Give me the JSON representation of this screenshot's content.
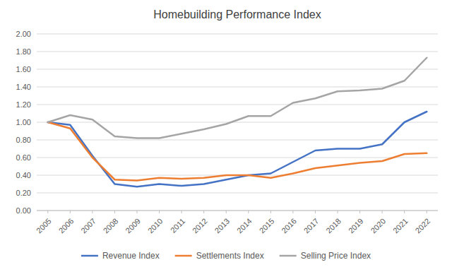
{
  "chart_data": {
    "type": "line",
    "title": "Homebuilding Performance Index",
    "x": [
      2005,
      2006,
      2007,
      2008,
      2009,
      2010,
      2011,
      2012,
      2013,
      2014,
      2015,
      2016,
      2017,
      2018,
      2019,
      2020,
      2021,
      2022
    ],
    "xlim": [
      2004.5,
      2022.5
    ],
    "xticks": [
      2005,
      2006,
      2007,
      2008,
      2009,
      2010,
      2011,
      2012,
      2013,
      2014,
      2015,
      2016,
      2017,
      2018,
      2019,
      2020,
      2021,
      2022
    ],
    "ylim": [
      0,
      2
    ],
    "yticks": [
      {
        "value": 0,
        "label": "0.00"
      },
      {
        "value": 0.2,
        "label": "0.20"
      },
      {
        "value": 0.4,
        "label": "0.40"
      },
      {
        "value": 0.6,
        "label": "0.60"
      },
      {
        "value": 0.8,
        "label": "0.80"
      },
      {
        "value": 1.0,
        "label": "1.00"
      },
      {
        "value": 1.2,
        "label": "1.20"
      },
      {
        "value": 1.4,
        "label": "1.40"
      },
      {
        "value": 1.6,
        "label": "1.60"
      },
      {
        "value": 1.8,
        "label": "1.80"
      },
      {
        "value": 2.0,
        "label": "2.00"
      }
    ],
    "grid": true,
    "legend": "bottom",
    "series": [
      {
        "name": "Revenue Index",
        "color": "#4472C4",
        "values": [
          1.0,
          0.97,
          0.62,
          0.3,
          0.27,
          0.3,
          0.28,
          0.3,
          0.35,
          0.4,
          0.42,
          0.55,
          0.68,
          0.7,
          0.7,
          0.75,
          1.0,
          1.12
        ]
      },
      {
        "name": "Settlements Index",
        "color": "#ED7D31",
        "values": [
          1.0,
          0.93,
          0.6,
          0.35,
          0.34,
          0.37,
          0.36,
          0.37,
          0.4,
          0.4,
          0.37,
          0.42,
          0.48,
          0.51,
          0.54,
          0.56,
          0.64,
          0.65
        ]
      },
      {
        "name": "Selling Price Index",
        "color": "#A5A5A5",
        "values": [
          1.0,
          1.08,
          1.03,
          0.84,
          0.82,
          0.82,
          0.87,
          0.92,
          0.98,
          1.07,
          1.07,
          1.22,
          1.27,
          1.35,
          1.36,
          1.38,
          1.47,
          1.73
        ]
      }
    ]
  }
}
